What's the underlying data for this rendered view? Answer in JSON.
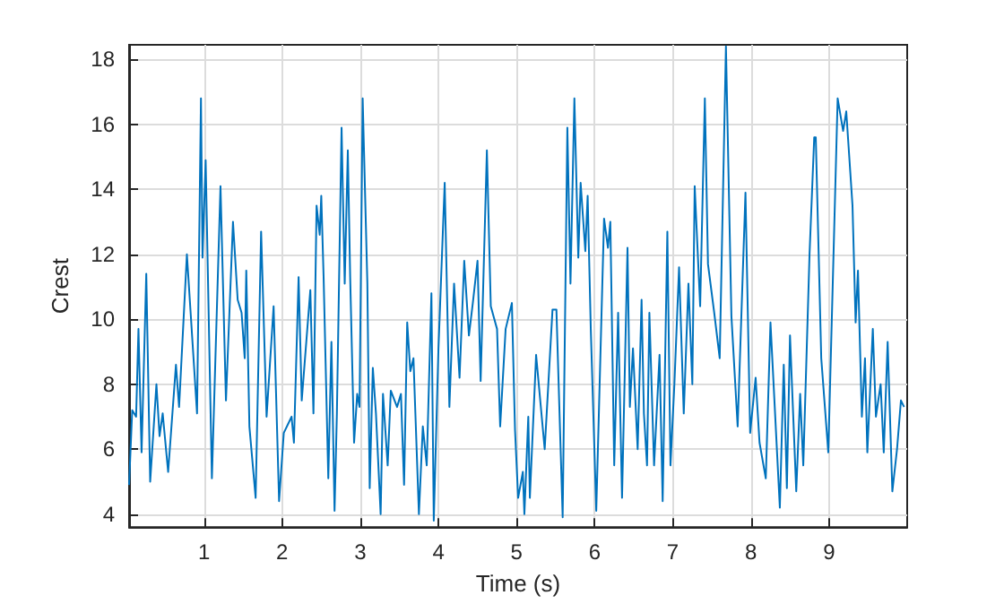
{
  "chart_data": {
    "type": "line",
    "xlabel": "Time (s)",
    "ylabel": "Crest",
    "xlim": [
      0.04,
      10
    ],
    "xticks": [
      1,
      2,
      3,
      4,
      5,
      6,
      7,
      8,
      9
    ],
    "ylim": [
      3.6,
      18.45
    ],
    "yticks": [
      4,
      6,
      8,
      10,
      12,
      14,
      16,
      18
    ],
    "grid": true,
    "marker": "none",
    "line_style": "solid",
    "x": [
      0.04,
      0.08,
      0.13,
      0.16,
      0.2,
      0.26,
      0.31,
      0.39,
      0.43,
      0.47,
      0.54,
      0.64,
      0.68,
      0.78,
      0.91,
      0.96,
      0.98,
      1.02,
      1.1,
      1.21,
      1.28,
      1.37,
      1.43,
      1.48,
      1.52,
      1.54,
      1.58,
      1.66,
      1.73,
      1.8,
      1.89,
      1.96,
      2.02,
      2.12,
      2.15,
      2.21,
      2.25,
      2.36,
      2.4,
      2.44,
      2.48,
      2.5,
      2.53,
      2.59,
      2.63,
      2.67,
      2.7,
      2.76,
      2.8,
      2.84,
      2.87,
      2.92,
      2.96,
      2.99,
      3.03,
      3.09,
      3.12,
      3.16,
      3.2,
      3.26,
      3.29,
      3.35,
      3.39,
      3.47,
      3.52,
      3.56,
      3.6,
      3.64,
      3.68,
      3.75,
      3.8,
      3.85,
      3.91,
      3.94,
      4.0,
      4.08,
      4.14,
      4.2,
      4.27,
      4.33,
      4.39,
      4.44,
      4.5,
      4.54,
      4.62,
      4.67,
      4.75,
      4.79,
      4.86,
      4.94,
      4.98,
      5.02,
      5.08,
      5.1,
      5.15,
      5.17,
      5.25,
      5.36,
      5.46,
      5.51,
      5.59,
      5.65,
      5.69,
      5.74,
      5.79,
      5.82,
      5.88,
      5.91,
      5.95,
      6.02,
      6.12,
      6.17,
      6.2,
      6.25,
      6.3,
      6.35,
      6.42,
      6.45,
      6.49,
      6.55,
      6.6,
      6.63,
      6.67,
      6.7,
      6.76,
      6.83,
      6.87,
      6.93,
      6.97,
      7.02,
      7.08,
      7.14,
      7.2,
      7.25,
      7.28,
      7.35,
      7.41,
      7.45,
      7.53,
      7.6,
      7.68,
      7.75,
      7.83,
      7.93,
      7.99,
      8.06,
      8.11,
      8.19,
      8.25,
      8.37,
      8.42,
      8.46,
      8.5,
      8.58,
      8.63,
      8.67,
      8.75,
      8.81,
      8.83,
      8.9,
      8.99,
      9.11,
      9.18,
      9.22,
      9.3,
      9.34,
      9.37,
      9.42,
      9.46,
      9.49,
      9.56,
      9.6,
      9.66,
      9.7,
      9.75,
      9.81,
      9.87,
      9.92,
      9.96
    ],
    "series": [
      {
        "color": "#0072bd",
        "values": [
          4.9,
          7.2,
          7.0,
          9.7,
          5.9,
          11.4,
          5.0,
          8.0,
          6.4,
          7.1,
          5.3,
          8.6,
          7.3,
          12.0,
          7.1,
          16.8,
          11.9,
          14.9,
          5.1,
          14.1,
          7.5,
          13.0,
          10.6,
          10.2,
          8.8,
          11.5,
          6.7,
          4.5,
          12.7,
          7.0,
          10.4,
          4.4,
          6.5,
          7.0,
          6.2,
          11.3,
          7.5,
          10.9,
          7.1,
          13.5,
          12.6,
          13.8,
          11.3,
          5.1,
          9.3,
          4.1,
          7.1,
          15.9,
          11.1,
          15.2,
          11.3,
          6.2,
          7.7,
          7.3,
          16.8,
          11.1,
          4.8,
          8.5,
          7.1,
          4.0,
          7.7,
          5.5,
          7.8,
          7.3,
          7.7,
          4.9,
          9.9,
          8.4,
          8.8,
          4.0,
          6.7,
          5.5,
          10.8,
          3.8,
          9.1,
          14.2,
          7.3,
          11.1,
          8.2,
          11.8,
          9.5,
          10.5,
          11.8,
          8.1,
          15.2,
          10.4,
          9.7,
          6.7,
          9.7,
          10.5,
          6.6,
          4.5,
          5.3,
          4.0,
          7.0,
          4.5,
          8.9,
          6.0,
          10.3,
          10.3,
          3.9,
          15.9,
          11.1,
          16.8,
          11.9,
          14.2,
          12.1,
          13.8,
          9.7,
          4.1,
          13.1,
          12.2,
          13.0,
          5.5,
          10.2,
          4.5,
          12.2,
          7.3,
          9.1,
          6.0,
          10.6,
          7.1,
          5.5,
          10.2,
          5.5,
          8.9,
          4.4,
          12.7,
          5.5,
          8.0,
          11.6,
          7.1,
          11.1,
          8.0,
          14.1,
          10.4,
          16.8,
          11.7,
          10.2,
          8.8,
          18.4,
          10.1,
          6.7,
          13.9,
          6.5,
          8.2,
          6.2,
          5.1,
          9.9,
          4.2,
          8.6,
          4.8,
          9.5,
          4.7,
          7.7,
          5.5,
          12.0,
          15.6,
          15.6,
          8.8,
          5.9,
          16.8,
          15.8,
          16.4,
          13.5,
          9.9,
          11.5,
          7.0,
          8.8,
          5.9,
          9.7,
          7.0,
          8.0,
          5.9,
          9.3,
          4.7,
          6.0,
          7.5,
          7.3
        ]
      }
    ]
  }
}
